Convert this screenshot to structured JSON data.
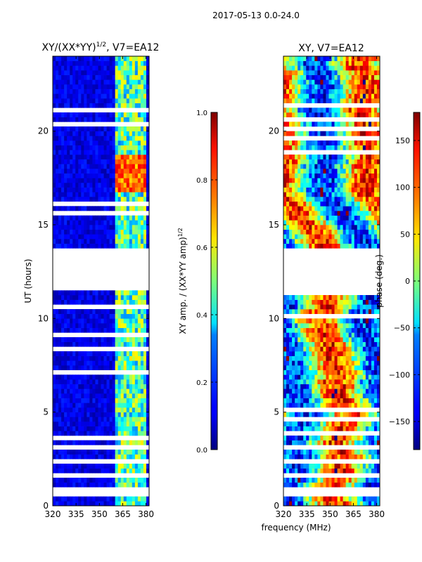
{
  "suptitle": "2017-05-13 0.0-24.0",
  "shared_xlabel": "frequency (MHz)",
  "chart_data": [
    {
      "type": "heatmap",
      "title_main": "XY/(XX*YY)",
      "title_exp": "1/2",
      "title_tail": ", V7=EA12",
      "xlabel": "",
      "ylabel": "UT (hours)",
      "xlim": [
        320,
        382
      ],
      "ylim": [
        0,
        24
      ],
      "xticks": [
        320,
        335,
        350,
        365,
        380
      ],
      "yticks": [
        0,
        5,
        10,
        15,
        20
      ],
      "colormap": "jet",
      "colorbar": {
        "label_main": "XY amp. / (XX*YY amp)",
        "label_exp": "1/2",
        "min": 0.0,
        "max": 1.0,
        "ticks": [
          0.0,
          0.2,
          0.4,
          0.6,
          0.8,
          1.0
        ],
        "tick_labels": [
          "0.0",
          "0.2",
          "0.4",
          "0.6",
          "0.8",
          "1.0"
        ]
      },
      "data_gaps_hours": [
        [
          0.4,
          0.9
        ],
        [
          11.6,
          13.8
        ]
      ],
      "bright_band_mhz": [
        360,
        380
      ],
      "typical_value_background": 0.1,
      "typical_value_band": 0.45,
      "peak_value": 0.9
    },
    {
      "type": "heatmap",
      "title": "XY, V7=EA12",
      "xlabel": "",
      "ylabel": "",
      "xlim": [
        320,
        382
      ],
      "ylim": [
        0,
        24
      ],
      "xticks": [
        320,
        335,
        350,
        365,
        380
      ],
      "yticks": [
        0,
        5,
        10,
        15,
        20
      ],
      "colormap": "jet",
      "colorbar": {
        "label": "phase (deg.)",
        "min": -180,
        "max": 180,
        "ticks": [
          -150,
          -100,
          -50,
          0,
          50,
          100,
          150
        ],
        "tick_labels": [
          "−150",
          "−100",
          "−50",
          "0",
          "50",
          "100",
          "150"
        ]
      },
      "data_gaps_hours": [
        [
          0.4,
          0.9
        ],
        [
          11.6,
          13.8
        ]
      ]
    }
  ]
}
